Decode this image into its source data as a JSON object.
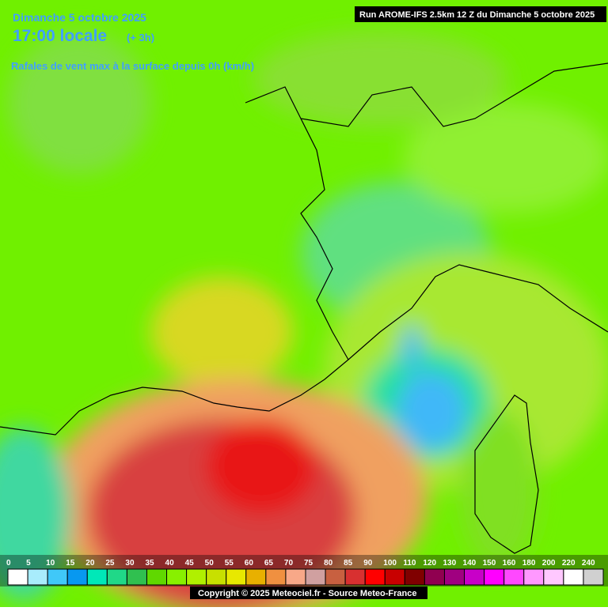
{
  "header": {
    "date": "Dimanche 5 octobre 2025",
    "time": "17:00 locale",
    "offset": "(+ 3h)",
    "subtitle": "Rafales de vent max à la surface depuis 0h (km/h)",
    "run": "Run AROME-IFS 2.5km 12 Z du Dimanche 5 octobre 2025"
  },
  "legend": {
    "labels": [
      "0",
      "5",
      "10",
      "15",
      "20",
      "25",
      "30",
      "35",
      "40",
      "45",
      "50",
      "55",
      "60",
      "65",
      "70",
      "75",
      "80",
      "85",
      "90",
      "100",
      "110",
      "120",
      "130",
      "140",
      "150",
      "160",
      "180",
      "200",
      "220",
      "240"
    ],
    "colors": [
      "#ffffff",
      "#a8ecfc",
      "#40c8f8",
      "#0898f0",
      "#00e8b8",
      "#20d888",
      "#30c050",
      "#60d800",
      "#88f000",
      "#b0f000",
      "#c8e000",
      "#e8e800",
      "#e8b000",
      "#f09040",
      "#f8a888",
      "#d0a0a0",
      "#c86040",
      "#d83030",
      "#ff0000",
      "#c80000",
      "#800000",
      "#900050",
      "#a00080",
      "#c800c8",
      "#ff00ff",
      "#ff48ff",
      "#ff98ff",
      "#ffc8ff",
      "#ffffff",
      "#d0d0d0"
    ]
  },
  "footer": {
    "copyright": "Copyright © 2025 Meteociel.fr - Source Meteo-France"
  }
}
